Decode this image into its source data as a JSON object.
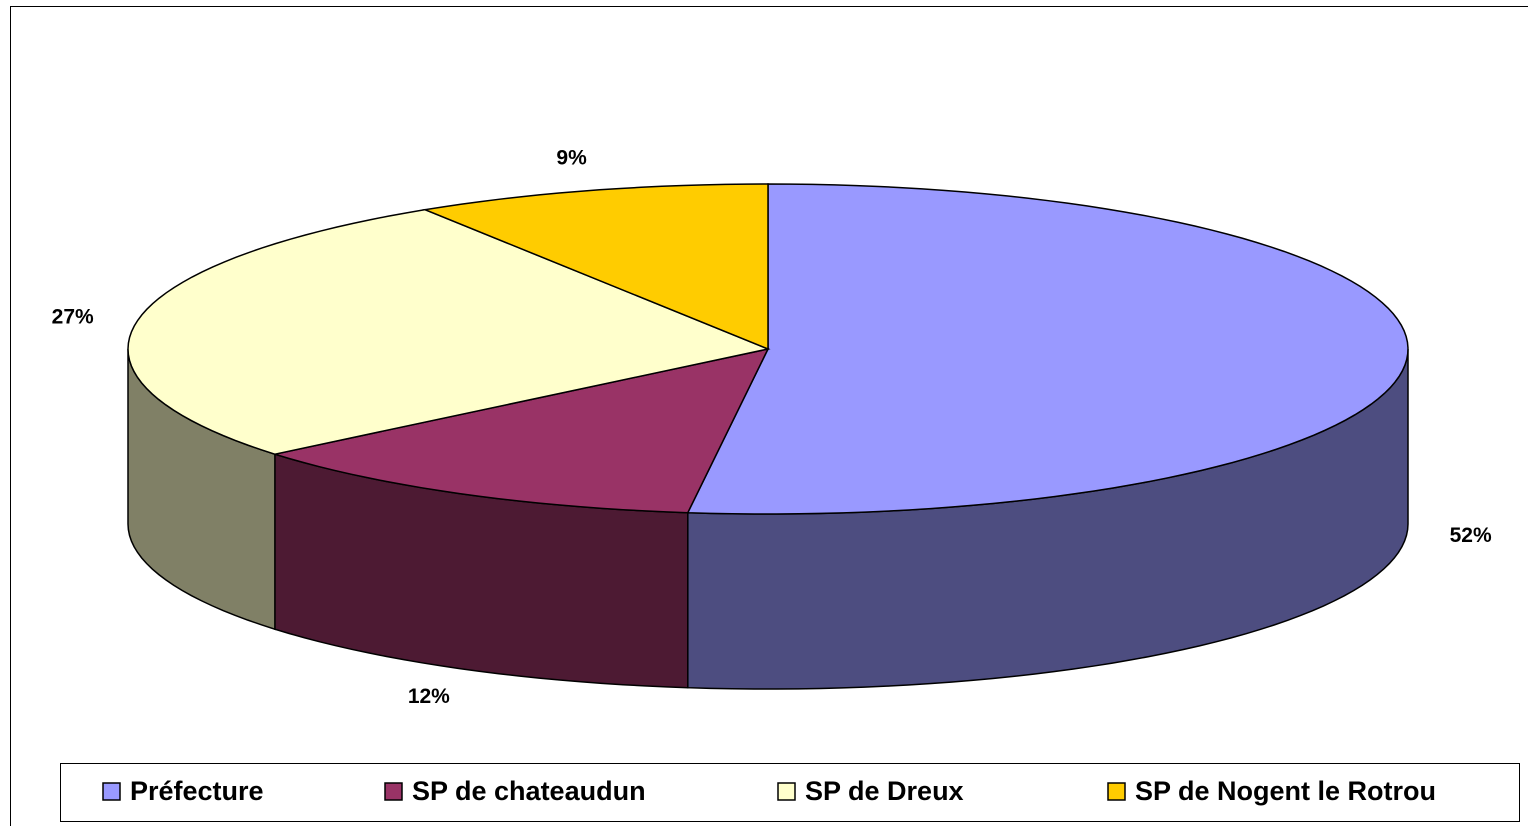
{
  "chart_data": {
    "type": "pie3d",
    "categories": [
      "Préfecture",
      "SP de chateaudun",
      "SP de Dreux",
      "SP de Nogent le Rotrou"
    ],
    "values": [
      52,
      12,
      27,
      9
    ],
    "value_labels": [
      "52%",
      "12%",
      "27%",
      "9%"
    ],
    "colors": [
      "#9999ff",
      "#993366",
      "#ffffcc",
      "#ffcc00"
    ],
    "legend": "bottom"
  }
}
